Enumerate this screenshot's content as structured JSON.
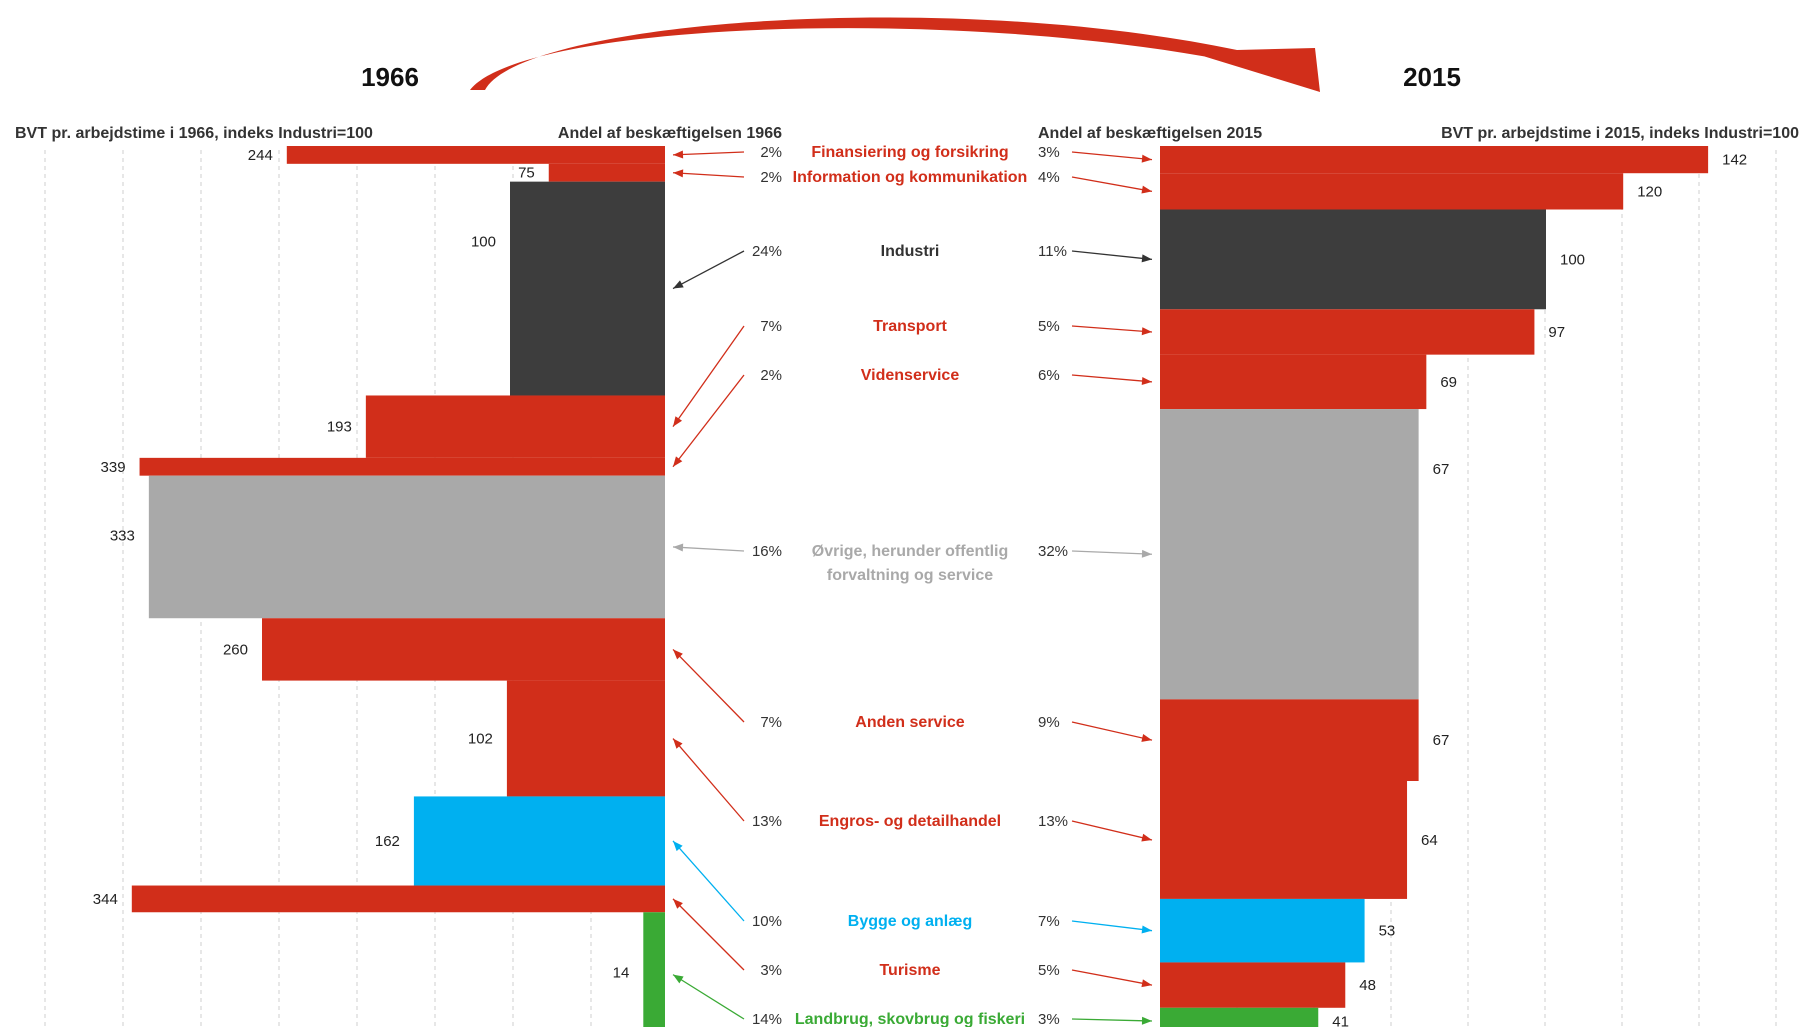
{
  "chart_data": {
    "type": "bar",
    "title_left": "1966",
    "title_right": "2015",
    "left_value_label": "BVT pr. arbejdstime i 1966, indeks Industri=100",
    "left_share_label": "Andel af beskæftigelsen 1966",
    "right_share_label": "Andel af beskæftigelsen 2015",
    "right_value_label": "BVT pr. arbejdstime i 2015, indeks Industri=100",
    "colors": {
      "red": "#d12e1a",
      "dark": "#3d3d3d",
      "gray": "#a9a9a9",
      "blue": "#00b0f0",
      "green": "#3aaa35"
    },
    "sectors": [
      {
        "name": "Finansiering og forsikring",
        "color": "red",
        "share1966": "2%",
        "share2015": "3%",
        "v1966": 244,
        "v2015": 142
      },
      {
        "name": "Information og kommunikation",
        "color": "red",
        "share1966": "2%",
        "share2015": "4%",
        "v1966": 75,
        "v2015": 120
      },
      {
        "name": "Industri",
        "color": "dark",
        "share1966": "24%",
        "share2015": "11%",
        "v1966": 100,
        "v2015": 100
      },
      {
        "name": "Transport",
        "color": "red",
        "share1966": "7%",
        "share2015": "5%",
        "v1966": 193,
        "v2015": 97
      },
      {
        "name": "Videnservice",
        "color": "red",
        "share1966": "2%",
        "share2015": "6%",
        "v1966": 339,
        "v2015": 69
      },
      {
        "name": "Øvrige, herunder offentlig forvaltning og service",
        "name_lines": [
          "Øvrige, herunder offentlig",
          "forvaltning og service"
        ],
        "color": "gray",
        "share1966": "16%",
        "share2015": "32%",
        "v1966": 333,
        "v2015": 67
      },
      {
        "name": "Anden service",
        "color": "red",
        "share1966": "7%",
        "share2015": "9%",
        "v1966": 260,
        "v2015": 67
      },
      {
        "name": "Engros- og detailhandel",
        "color": "red",
        "share1966": "13%",
        "share2015": "13%",
        "v1966": 102,
        "v2015": 64
      },
      {
        "name": "Bygge og anlæg",
        "color": "blue",
        "share1966": "10%",
        "share2015": "7%",
        "v1966": 162,
        "v2015": 53
      },
      {
        "name": "Turisme",
        "color": "red",
        "share1966": "3%",
        "share2015": "5%",
        "v1966": 344,
        "v2015": 48
      },
      {
        "name": "Landbrug, skovbrug og fiskeri",
        "color": "green",
        "share1966": "14%",
        "share2015": "3%",
        "v1966": 14,
        "v2015": 41
      }
    ]
  }
}
